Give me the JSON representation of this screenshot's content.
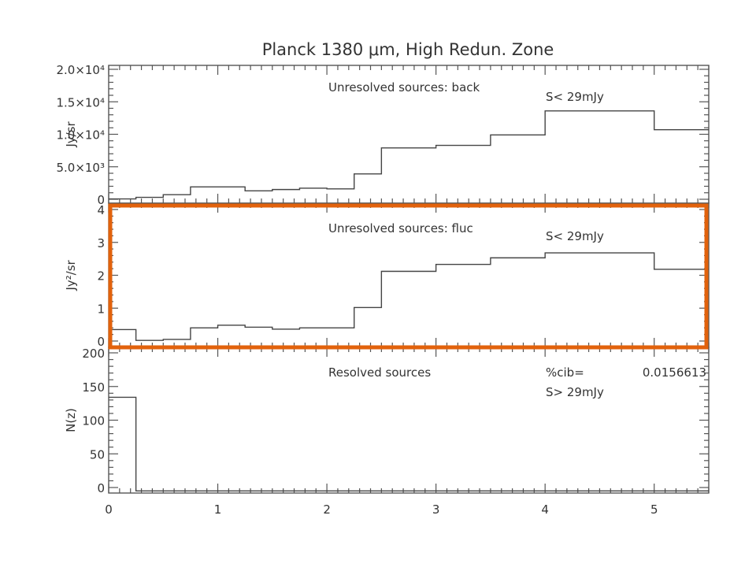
{
  "figure": {
    "title": "Planck 1380 μm, High Redun. Zone",
    "highlight_color": "#e2620c"
  },
  "chart_data": [
    {
      "type": "bar",
      "subtype": "step-histogram",
      "panel": "top",
      "ylabel": "Jy/sr",
      "annotation": "Unresolved sources: back",
      "flux_label": "S< 29mJy",
      "ylim": [
        0,
        20000
      ],
      "xlim": [
        0,
        5.5
      ],
      "yticks": [
        {
          "value": 0,
          "label": "0"
        },
        {
          "value": 5000,
          "label": "5.0×10³"
        },
        {
          "value": 10000,
          "label": "1.0×10⁴"
        },
        {
          "value": 15000,
          "label": "1.5×10⁴"
        },
        {
          "value": 20000,
          "label": "2.0×10⁴"
        }
      ],
      "bin_edges": [
        0,
        0.25,
        0.5,
        0.75,
        1.0,
        1.25,
        1.5,
        1.75,
        2.0,
        2.25,
        2.5,
        3.0,
        3.5,
        4.0,
        5.0,
        5.5
      ],
      "values": [
        50,
        300,
        700,
        1900,
        1900,
        1300,
        1500,
        1700,
        1600,
        3900,
        7900,
        8300,
        9900,
        13600,
        10700
      ]
    },
    {
      "type": "bar",
      "subtype": "step-histogram",
      "panel": "middle",
      "ylabel": "Jy²/sr",
      "annotation": "Unresolved sources: fluc",
      "flux_label": "S< 29mJy",
      "ylim": [
        0,
        4
      ],
      "xlim": [
        0,
        5.5
      ],
      "highlighted": true,
      "yticks": [
        {
          "value": 0,
          "label": "0"
        },
        {
          "value": 1,
          "label": "1"
        },
        {
          "value": 2,
          "label": "2"
        },
        {
          "value": 3,
          "label": "3"
        },
        {
          "value": 4,
          "label": "4"
        }
      ],
      "bin_edges": [
        0,
        0.25,
        0.5,
        0.75,
        1.0,
        1.25,
        1.5,
        1.75,
        2.0,
        2.25,
        2.5,
        3.0,
        3.5,
        4.0,
        5.0,
        5.5
      ],
      "values": [
        0.35,
        0.02,
        0.05,
        0.4,
        0.48,
        0.42,
        0.36,
        0.4,
        0.4,
        1.02,
        2.12,
        2.33,
        2.53,
        2.68,
        2.18
      ]
    },
    {
      "type": "bar",
      "subtype": "step-histogram",
      "panel": "bottom",
      "ylabel": "N(z)",
      "xlabel": "",
      "annotation": "Resolved sources",
      "cib_label": "%cib=",
      "cib_value": "0.0156613",
      "flux_label": "S> 29mJy",
      "ylim": [
        0,
        200
      ],
      "xlim": [
        0,
        5.5
      ],
      "yticks": [
        {
          "value": 0,
          "label": "0"
        },
        {
          "value": 50,
          "label": "50"
        },
        {
          "value": 100,
          "label": "100"
        },
        {
          "value": 150,
          "label": "150"
        },
        {
          "value": 200,
          "label": "200"
        }
      ],
      "xticks": [
        {
          "value": 0,
          "label": "0"
        },
        {
          "value": 1,
          "label": "1"
        },
        {
          "value": 2,
          "label": "2"
        },
        {
          "value": 3,
          "label": "3"
        },
        {
          "value": 4,
          "label": "4"
        },
        {
          "value": 5,
          "label": "5"
        }
      ],
      "bin_edges": [
        0,
        0.25,
        0.5,
        0.75,
        1.0,
        1.25,
        1.5,
        1.75,
        2.0,
        2.25,
        2.5,
        3.0,
        3.5,
        4.0,
        5.0,
        5.5
      ],
      "values": [
        134,
        -5,
        -5,
        -5,
        -5,
        -5,
        -5,
        -5,
        -5,
        -5,
        -5,
        -5,
        -5,
        -5,
        -5
      ]
    }
  ]
}
